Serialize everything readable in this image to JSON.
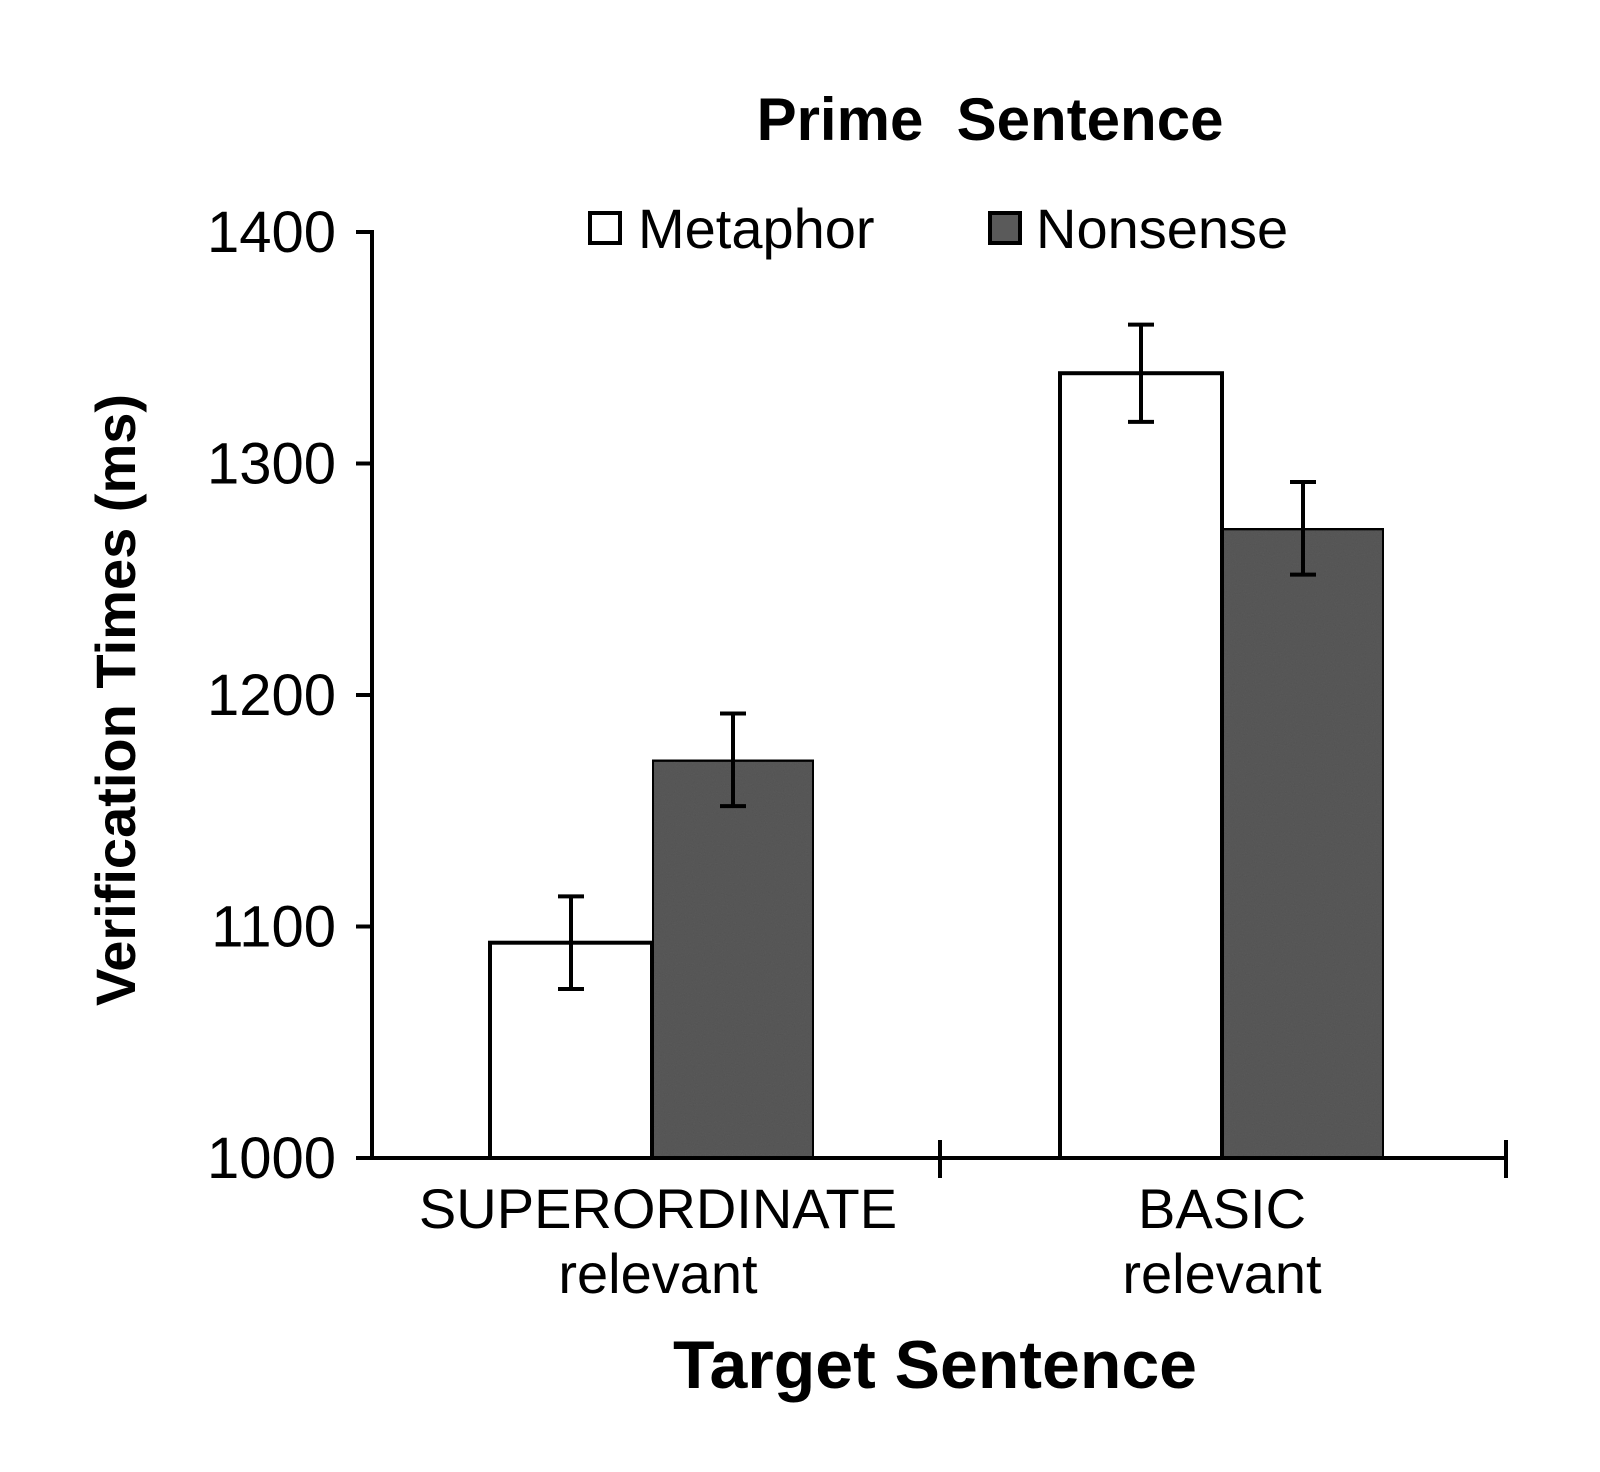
{
  "chart_data": {
    "type": "bar",
    "legend_title": "Prime  Sentence",
    "legend_position": "top",
    "xlabel": "Target Sentence",
    "ylabel": "Verification Times (ms)",
    "ylim": [
      1000,
      1400
    ],
    "yticks": [
      "1000",
      "1100",
      "1200",
      "1300",
      "1400"
    ],
    "grid": false,
    "categories": [
      {
        "line1": "SUPERORDINATE",
        "line2": "relevant"
      },
      {
        "line1": "BASIC",
        "line2": "relevant"
      }
    ],
    "series": [
      {
        "name": "Metaphor",
        "color": "#ffffff",
        "values": [
          1093,
          1339
        ],
        "error": [
          20,
          21
        ]
      },
      {
        "name": "Nonsense",
        "color": "#5a5a5a",
        "values": [
          1172,
          1272
        ],
        "error": [
          20,
          20
        ]
      }
    ]
  }
}
